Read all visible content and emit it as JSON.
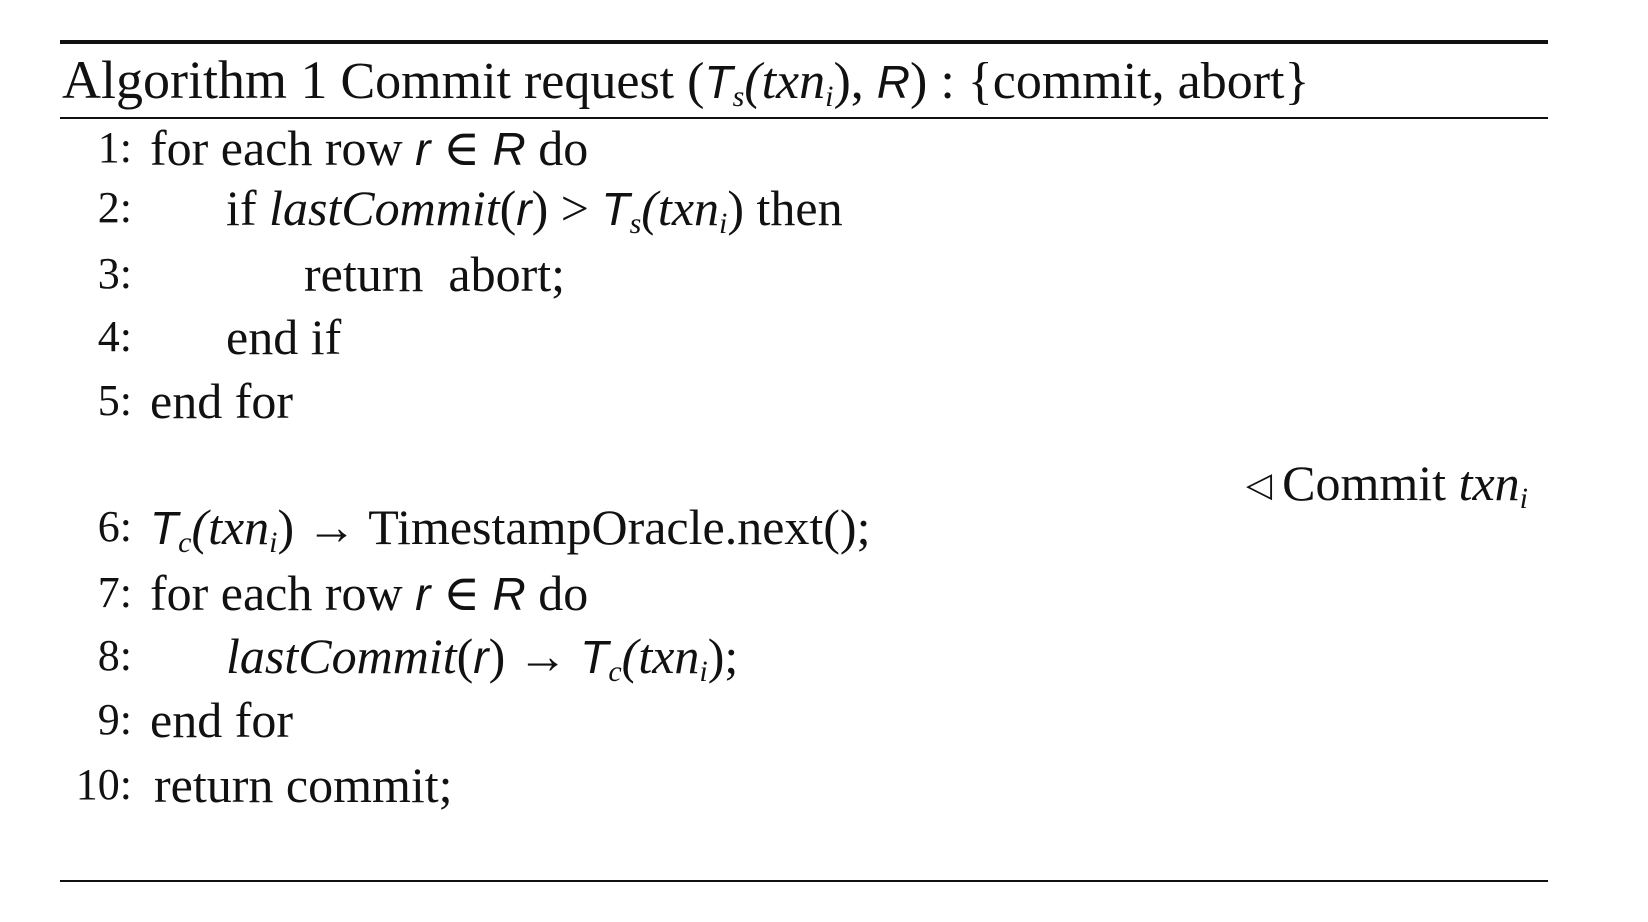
{
  "algorithm": {
    "label": "Algorithm 1",
    "name": "Commit request",
    "args_open": "(",
    "arg_ts": "T",
    "arg_ts_sub": "s",
    "arg_txn": "(txn",
    "arg_txn_sub": "i",
    "arg_close": "),",
    "arg_r": "R",
    "returns": ") : {commit, abort}"
  },
  "lines": {
    "l1": {
      "num": "1:",
      "kw": "for each row",
      "v1": "r",
      "op": "∈",
      "v2": "R",
      "tail": "do"
    },
    "l2": {
      "num": "2:",
      "kw": "if",
      "fn": "lastCommit",
      "arg": "r",
      "op": ">",
      "t": "T",
      "t_sub": "s",
      "txn": "(txn",
      "txn_sub": "i",
      "close": ")",
      "tail": "then"
    },
    "l3": {
      "num": "3:",
      "text": "return  abort;"
    },
    "l4": {
      "num": "4:",
      "text": "end if"
    },
    "l5": {
      "num": "5:",
      "text": "end for"
    },
    "comment": {
      "text": "Commit",
      "var": "txn",
      "var_sub": "i"
    },
    "l6": {
      "num": "6:",
      "t": "T",
      "t_sub": "c",
      "txn": "(txn",
      "txn_sub": "i",
      "close": ")",
      "arrow": "→",
      "tail": "TimestampOracle.next();"
    },
    "l7": {
      "num": "7:",
      "kw": "for each row",
      "v1": "r",
      "op": "∈",
      "v2": "R",
      "tail": "do"
    },
    "l8": {
      "num": "8:",
      "fn": "lastCommit",
      "arg": "r",
      "arrow": "→",
      "t": "T",
      "t_sub": "c",
      "txn": "(txn",
      "txn_sub": "i",
      "close": ");"
    },
    "l9": {
      "num": "9:",
      "text": "end for"
    },
    "l10": {
      "num": "10:",
      "text": "return commit;"
    }
  }
}
